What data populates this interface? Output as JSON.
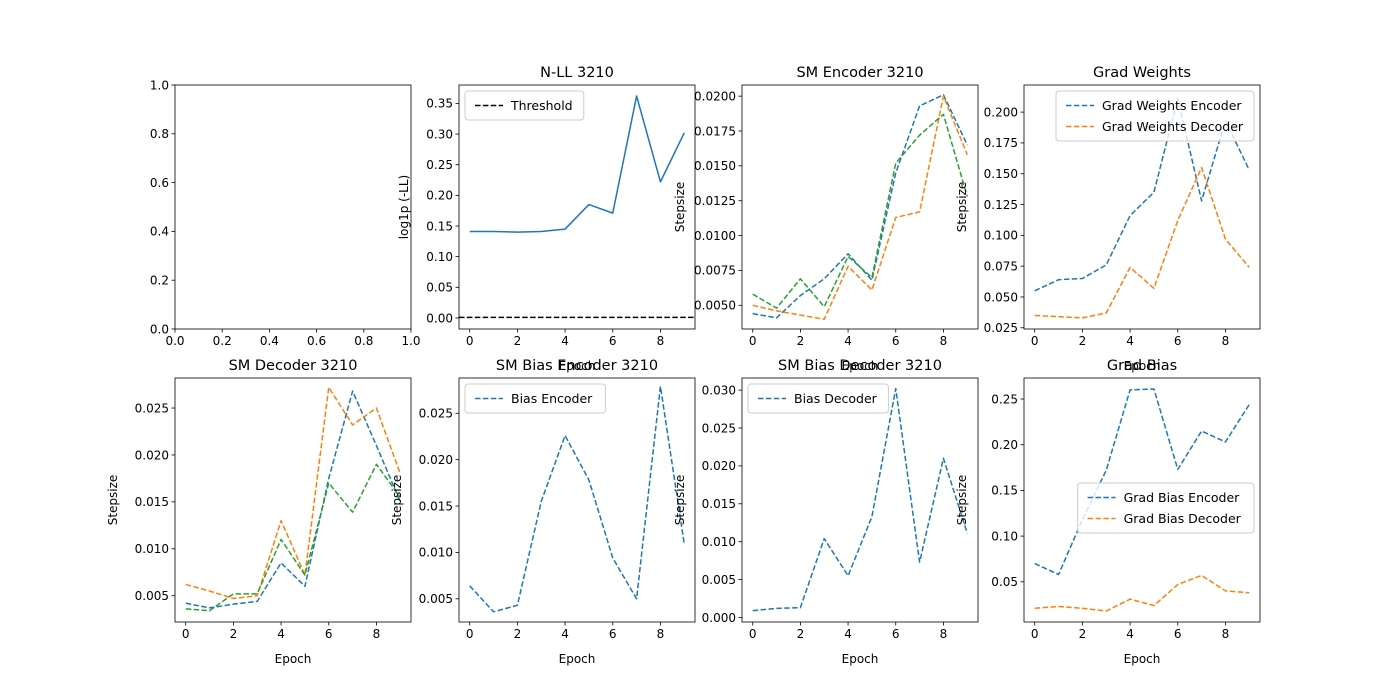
{
  "chart_data": [
    {
      "type": "empty",
      "title": "",
      "xlabel": "",
      "ylabel": "",
      "xlim": [
        0,
        1
      ],
      "ylim": [
        0,
        1
      ],
      "xticks": [
        0.0,
        0.2,
        0.4,
        0.6,
        0.8,
        1.0
      ],
      "xtick_labels": [
        "0.0",
        "0.2",
        "0.4",
        "0.6",
        "0.8",
        "1.0"
      ],
      "yticks": [
        0.0,
        0.2,
        0.4,
        0.6,
        0.8,
        1.0
      ],
      "ytick_labels": [
        "0.0",
        "0.2",
        "0.4",
        "0.6",
        "0.8",
        "1.0"
      ],
      "series": [],
      "hlines": [],
      "legend": null
    },
    {
      "type": "line",
      "title": "N-LL 3210",
      "xlabel": "Epoch",
      "ylabel": "log1p (-LL)",
      "xlim": [
        -0.45,
        9.45
      ],
      "ylim": [
        -0.018,
        0.38
      ],
      "xticks": [
        0,
        2,
        4,
        6,
        8
      ],
      "xtick_labels": [
        "0",
        "2",
        "4",
        "6",
        "8"
      ],
      "yticks": [
        0,
        0.05,
        0.1,
        0.15,
        0.2,
        0.25,
        0.3,
        0.35
      ],
      "ytick_labels": [
        "0.00",
        "0.05",
        "0.10",
        "0.15",
        "0.20",
        "0.25",
        "0.30",
        "0.35"
      ],
      "series": [
        {
          "name": "",
          "color": "#1f77b4",
          "dash": "solid",
          "x": [
            0,
            1,
            2,
            3,
            4,
            5,
            6,
            7,
            8,
            9
          ],
          "y": [
            0.141,
            0.141,
            0.14,
            0.141,
            0.145,
            0.185,
            0.171,
            0.362,
            0.222,
            0.302
          ]
        }
      ],
      "hlines": [
        {
          "y": 0.001,
          "color": "#000000",
          "dash": "dashed",
          "name": "Threshold"
        }
      ],
      "legend": {
        "position": "upper-left",
        "entries": [
          {
            "label": "Threshold",
            "color": "#000000",
            "dash": "dashed"
          }
        ]
      }
    },
    {
      "type": "line",
      "title": "SM Encoder 3210",
      "xlabel": "Epoch",
      "ylabel": "Stepsize",
      "xlim": [
        -0.45,
        9.45
      ],
      "ylim": [
        0.0033,
        0.0208
      ],
      "xticks": [
        0,
        2,
        4,
        6,
        8
      ],
      "xtick_labels": [
        "0",
        "2",
        "4",
        "6",
        "8"
      ],
      "yticks": [
        0.005,
        0.0075,
        0.01,
        0.0125,
        0.015,
        0.0175,
        0.02
      ],
      "ytick_labels": [
        "0.0050",
        "0.0075",
        "0.0100",
        "0.0125",
        "0.0150",
        "0.0175",
        "0.0200"
      ],
      "series": [
        {
          "name": "",
          "color": "#1f77b4",
          "dash": "dashed",
          "x": [
            0,
            1,
            2,
            3,
            4,
            5,
            6,
            7,
            8,
            9
          ],
          "y": [
            0.0044,
            0.0041,
            0.0057,
            0.0069,
            0.0087,
            0.0068,
            0.0145,
            0.0193,
            0.0201,
            0.0165
          ]
        },
        {
          "name": "",
          "color": "#ff7f0e",
          "dash": "dashed",
          "x": [
            0,
            1,
            2,
            3,
            4,
            5,
            6,
            7,
            8,
            9
          ],
          "y": [
            0.005,
            0.0046,
            0.0043,
            0.004,
            0.0078,
            0.0061,
            0.0113,
            0.0117,
            0.02,
            0.0158
          ]
        },
        {
          "name": "",
          "color": "#2ca02c",
          "dash": "dashed",
          "x": [
            0,
            1,
            2,
            3,
            4,
            5,
            6,
            7,
            8,
            9
          ],
          "y": [
            0.0058,
            0.0048,
            0.0069,
            0.0049,
            0.0085,
            0.007,
            0.0152,
            0.0172,
            0.0187,
            0.0128
          ]
        }
      ],
      "hlines": [],
      "legend": null
    },
    {
      "type": "line",
      "title": "Grad Weights",
      "xlabel": "Epoch",
      "ylabel": "Stepsize",
      "xlim": [
        -0.45,
        9.45
      ],
      "ylim": [
        0.024,
        0.222
      ],
      "xticks": [
        0,
        2,
        4,
        6,
        8
      ],
      "xtick_labels": [
        "0",
        "2",
        "4",
        "6",
        "8"
      ],
      "yticks": [
        0.025,
        0.05,
        0.075,
        0.1,
        0.125,
        0.15,
        0.175,
        0.2
      ],
      "ytick_labels": [
        "0.025",
        "0.050",
        "0.075",
        "0.100",
        "0.125",
        "0.150",
        "0.175",
        "0.200"
      ],
      "series": [
        {
          "name": "Grad Weights Encoder",
          "color": "#1f77b4",
          "dash": "dashed",
          "x": [
            0,
            1,
            2,
            3,
            4,
            5,
            6,
            7,
            8,
            9
          ],
          "y": [
            0.055,
            0.064,
            0.065,
            0.076,
            0.116,
            0.135,
            0.211,
            0.128,
            0.193,
            0.153
          ]
        },
        {
          "name": "Grad Weights Decoder",
          "color": "#ff7f0e",
          "dash": "dashed",
          "x": [
            0,
            1,
            2,
            3,
            4,
            5,
            6,
            7,
            8,
            9
          ],
          "y": [
            0.035,
            0.034,
            0.033,
            0.037,
            0.074,
            0.057,
            0.112,
            0.155,
            0.097,
            0.074
          ]
        }
      ],
      "hlines": [],
      "legend": {
        "position": "upper-right",
        "entries": [
          {
            "label": "Grad Weights Encoder",
            "color": "#1f77b4",
            "dash": "dashed"
          },
          {
            "label": "Grad Weights Decoder",
            "color": "#ff7f0e",
            "dash": "dashed"
          }
        ]
      }
    },
    {
      "type": "line",
      "title": "SM Decoder 3210",
      "xlabel": "Epoch",
      "ylabel": "Stepsize",
      "xlim": [
        -0.45,
        9.45
      ],
      "ylim": [
        0.0022,
        0.0282
      ],
      "xticks": [
        0,
        2,
        4,
        6,
        8
      ],
      "xtick_labels": [
        "0",
        "2",
        "4",
        "6",
        "8"
      ],
      "yticks": [
        0.005,
        0.01,
        0.015,
        0.02,
        0.025
      ],
      "ytick_labels": [
        "0.005",
        "0.010",
        "0.015",
        "0.020",
        "0.025"
      ],
      "series": [
        {
          "name": "",
          "color": "#1f77b4",
          "dash": "dashed",
          "x": [
            0,
            1,
            2,
            3,
            4,
            5,
            6,
            7,
            8,
            9
          ],
          "y": [
            0.0042,
            0.0037,
            0.0041,
            0.0044,
            0.0085,
            0.006,
            0.0175,
            0.0268,
            0.021,
            0.015
          ]
        },
        {
          "name": "",
          "color": "#ff7f0e",
          "dash": "dashed",
          "x": [
            0,
            1,
            2,
            3,
            4,
            5,
            6,
            7,
            8,
            9
          ],
          "y": [
            0.0062,
            0.0055,
            0.0047,
            0.005,
            0.013,
            0.0072,
            0.0272,
            0.0232,
            0.025,
            0.018
          ]
        },
        {
          "name": "",
          "color": "#2ca02c",
          "dash": "dashed",
          "x": [
            0,
            1,
            2,
            3,
            4,
            5,
            6,
            7,
            8,
            9
          ],
          "y": [
            0.0036,
            0.0034,
            0.0052,
            0.0052,
            0.011,
            0.0072,
            0.017,
            0.0139,
            0.019,
            0.0155
          ]
        }
      ],
      "hlines": [],
      "legend": null
    },
    {
      "type": "line",
      "title": "SM Bias Encoder 3210",
      "xlabel": "Epoch",
      "ylabel": "Stepsize",
      "xlim": [
        -0.45,
        9.45
      ],
      "ylim": [
        0.0025,
        0.0288
      ],
      "xticks": [
        0,
        2,
        4,
        6,
        8
      ],
      "xtick_labels": [
        "0",
        "2",
        "4",
        "6",
        "8"
      ],
      "yticks": [
        0.005,
        0.01,
        0.015,
        0.02,
        0.025
      ],
      "ytick_labels": [
        "0.005",
        "0.010",
        "0.015",
        "0.020",
        "0.025"
      ],
      "series": [
        {
          "name": "Bias Encoder",
          "color": "#1f77b4",
          "dash": "dashed",
          "x": [
            0,
            1,
            2,
            3,
            4,
            5,
            6,
            7,
            8,
            9
          ],
          "y": [
            0.0064,
            0.0036,
            0.0043,
            0.0155,
            0.0226,
            0.0178,
            0.0094,
            0.005,
            0.0279,
            0.0109
          ]
        }
      ],
      "hlines": [],
      "legend": {
        "position": "upper-left",
        "entries": [
          {
            "label": "Bias Encoder",
            "color": "#1f77b4",
            "dash": "dashed"
          }
        ]
      }
    },
    {
      "type": "line",
      "title": "SM Bias Decoder 3210",
      "xlabel": "Epoch",
      "ylabel": "Stepsize",
      "xlim": [
        -0.45,
        9.45
      ],
      "ylim": [
        -0.0006,
        0.0316
      ],
      "xticks": [
        0,
        2,
        4,
        6,
        8
      ],
      "xtick_labels": [
        "0",
        "2",
        "4",
        "6",
        "8"
      ],
      "yticks": [
        0,
        0.005,
        0.01,
        0.015,
        0.02,
        0.025,
        0.03
      ],
      "ytick_labels": [
        "0.000",
        "0.005",
        "0.010",
        "0.015",
        "0.020",
        "0.025",
        "0.030"
      ],
      "series": [
        {
          "name": "Bias Decoder",
          "color": "#1f77b4",
          "dash": "dashed",
          "x": [
            0,
            1,
            2,
            3,
            4,
            5,
            6,
            7,
            8,
            9
          ],
          "y": [
            0.0009,
            0.0012,
            0.0013,
            0.0104,
            0.0055,
            0.0133,
            0.0302,
            0.0073,
            0.021,
            0.0111
          ]
        }
      ],
      "hlines": [],
      "legend": {
        "position": "upper-left",
        "entries": [
          {
            "label": "Bias Decoder",
            "color": "#1f77b4",
            "dash": "dashed"
          }
        ]
      }
    },
    {
      "type": "line",
      "title": "Grad Bias",
      "xlabel": "Epoch",
      "ylabel": "Stepsize",
      "xlim": [
        -0.45,
        9.45
      ],
      "ylim": [
        0.006,
        0.273
      ],
      "xticks": [
        0,
        2,
        4,
        6,
        8
      ],
      "xtick_labels": [
        "0",
        "2",
        "4",
        "6",
        "8"
      ],
      "yticks": [
        0.05,
        0.1,
        0.15,
        0.2,
        0.25
      ],
      "ytick_labels": [
        "0.05",
        "0.10",
        "0.15",
        "0.20",
        "0.25"
      ],
      "series": [
        {
          "name": "Grad Bias Encoder",
          "color": "#1f77b4",
          "dash": "dashed",
          "x": [
            0,
            1,
            2,
            3,
            4,
            5,
            6,
            7,
            8,
            9
          ],
          "y": [
            0.07,
            0.058,
            0.118,
            0.172,
            0.26,
            0.261,
            0.173,
            0.215,
            0.203,
            0.244
          ]
        },
        {
          "name": "Grad Bias Decoder",
          "color": "#ff7f0e",
          "dash": "dashed",
          "x": [
            0,
            1,
            2,
            3,
            4,
            5,
            6,
            7,
            8,
            9
          ],
          "y": [
            0.021,
            0.023,
            0.021,
            0.018,
            0.031,
            0.024,
            0.047,
            0.057,
            0.04,
            0.038
          ]
        }
      ],
      "hlines": [],
      "legend": {
        "position": "center-right",
        "entries": [
          {
            "label": "Grad Bias Encoder",
            "color": "#1f77b4",
            "dash": "dashed"
          },
          {
            "label": "Grad Bias Decoder",
            "color": "#ff7f0e",
            "dash": "dashed"
          }
        ]
      }
    }
  ]
}
